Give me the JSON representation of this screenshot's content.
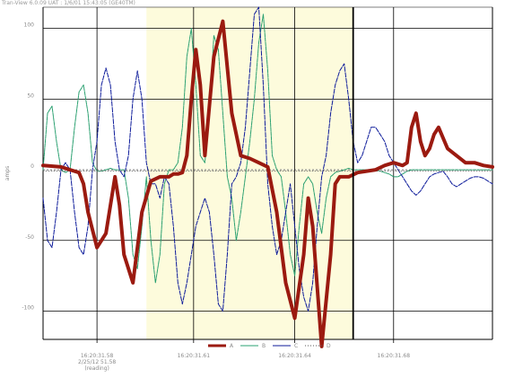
{
  "window": {
    "title": "Tran-View 6.0.09 UAT : 1/6/01 15:43:05 (GE40TM)"
  },
  "chart_data": {
    "type": "line",
    "ylabel": "amps",
    "ylim": [
      -120,
      115
    ],
    "y_ticks": [
      -100,
      -50,
      0,
      50,
      100
    ],
    "y_tick_labels": [
      "-100",
      "-50",
      "0",
      "50",
      "100"
    ],
    "x_domain": [
      0,
      100
    ],
    "x_ticks": [
      {
        "pos": 12,
        "label": "16:20:31.58",
        "sublabel": "2/25/12 51.58",
        "sublabel2": "(reading)"
      },
      {
        "pos": 33.5,
        "label": "16:20:31.61"
      },
      {
        "pos": 56,
        "label": "16:20:31.64"
      },
      {
        "pos": 78,
        "label": "16:20:31.68"
      }
    ],
    "x_grid": [
      12,
      33.5,
      56,
      78
    ],
    "cursor_lines": [
      23,
      69
    ],
    "highlight_range": [
      23,
      69
    ],
    "grid": true,
    "legend_position": "bottom",
    "series": [
      {
        "name": "A",
        "color": "#9b1a10",
        "x": [
          0,
          4,
          6,
          8,
          9,
          10,
          12,
          14,
          16,
          17,
          18,
          20,
          22,
          24,
          26,
          28,
          29,
          30,
          31,
          32,
          33,
          34,
          35,
          36,
          38,
          40,
          42,
          44,
          46,
          48,
          50,
          52,
          54,
          56,
          58,
          59,
          60,
          62,
          64,
          65,
          66,
          67,
          68,
          70,
          72,
          74,
          76,
          78,
          80,
          81,
          82,
          83,
          84,
          85,
          86,
          87,
          88,
          90,
          92,
          94,
          96,
          98,
          100
        ],
        "values": [
          3,
          2,
          0,
          -2,
          -10,
          -30,
          -55,
          -45,
          -5,
          -25,
          -60,
          -80,
          -30,
          -8,
          -5,
          -5,
          -3,
          -3,
          -2,
          10,
          50,
          85,
          60,
          10,
          80,
          105,
          40,
          10,
          8,
          5,
          2,
          -30,
          -80,
          -105,
          -60,
          -20,
          -40,
          -125,
          -60,
          -10,
          -5,
          -5,
          -5,
          -2,
          -1,
          0,
          3,
          5,
          3,
          5,
          30,
          40,
          20,
          10,
          15,
          25,
          30,
          15,
          10,
          5,
          5,
          3,
          2
        ]
      },
      {
        "name": "B",
        "color": "#2aa070",
        "x": [
          0,
          1,
          2,
          3,
          4,
          5,
          6,
          7,
          8,
          9,
          10,
          11,
          12,
          13,
          14,
          15,
          16,
          17,
          18,
          19,
          20,
          21,
          22,
          23,
          24,
          25,
          26,
          27,
          28,
          29,
          30,
          31,
          32,
          33,
          34,
          35,
          36,
          37,
          38,
          39,
          40,
          41,
          42,
          43,
          44,
          45,
          46,
          47,
          48,
          49,
          50,
          51,
          52,
          53,
          54,
          55,
          56,
          57,
          58,
          59,
          60,
          61,
          62,
          63,
          64,
          65,
          66,
          67,
          68,
          69,
          70,
          71,
          72,
          73,
          74,
          75,
          76,
          77,
          78,
          79,
          80,
          81,
          82,
          83,
          84,
          85,
          86,
          87,
          88,
          89,
          90,
          91,
          92,
          93,
          94,
          95,
          96,
          97,
          98,
          99,
          100
        ],
        "values": [
          0,
          40,
          45,
          20,
          0,
          -2,
          0,
          30,
          55,
          60,
          40,
          5,
          -1,
          -1,
          0,
          1,
          0,
          0,
          0,
          -20,
          -60,
          -70,
          -40,
          -5,
          -50,
          -80,
          -60,
          -10,
          0,
          0,
          5,
          30,
          80,
          100,
          60,
          10,
          5,
          40,
          95,
          85,
          40,
          -5,
          -20,
          -50,
          -30,
          -5,
          20,
          50,
          90,
          110,
          70,
          10,
          0,
          -5,
          -30,
          -60,
          -75,
          -40,
          -10,
          -5,
          -10,
          -30,
          -45,
          -20,
          -5,
          -2,
          -1,
          0,
          1,
          0,
          0,
          0,
          0,
          0,
          0,
          -1,
          -2,
          -3,
          -5,
          -5,
          -3,
          -1,
          0,
          0,
          0,
          0,
          0,
          0,
          0,
          0,
          0,
          0,
          0,
          0,
          0,
          0,
          0,
          0,
          0,
          0,
          0
        ]
      },
      {
        "name": "C",
        "color": "#0c1a9a",
        "x": [
          0,
          1,
          2,
          3,
          4,
          5,
          6,
          7,
          8,
          9,
          10,
          11,
          12,
          13,
          14,
          15,
          16,
          17,
          18,
          19,
          20,
          21,
          22,
          23,
          24,
          25,
          26,
          27,
          28,
          29,
          30,
          31,
          32,
          33,
          34,
          35,
          36,
          37,
          38,
          39,
          40,
          41,
          42,
          43,
          44,
          45,
          46,
          47,
          48,
          49,
          50,
          51,
          52,
          53,
          54,
          55,
          56,
          57,
          58,
          59,
          60,
          61,
          62,
          63,
          64,
          65,
          66,
          67,
          68,
          69,
          70,
          71,
          72,
          73,
          74,
          75,
          76,
          77,
          78,
          79,
          80,
          81,
          82,
          83,
          84,
          85,
          86,
          87,
          88,
          89,
          90,
          91,
          92,
          93,
          94,
          95,
          96,
          97,
          98,
          99,
          100
        ],
        "values": [
          -20,
          -50,
          -55,
          -30,
          0,
          5,
          0,
          -30,
          -55,
          -60,
          -40,
          0,
          20,
          60,
          72,
          60,
          20,
          0,
          -5,
          10,
          50,
          70,
          50,
          5,
          -10,
          -10,
          -20,
          -5,
          -10,
          -40,
          -80,
          -95,
          -80,
          -60,
          -40,
          -30,
          -20,
          -30,
          -60,
          -95,
          -100,
          -60,
          -10,
          -5,
          5,
          30,
          70,
          110,
          115,
          60,
          -10,
          -40,
          -60,
          -50,
          -30,
          -10,
          -40,
          -70,
          -90,
          -100,
          -80,
          -40,
          -5,
          10,
          40,
          60,
          70,
          75,
          50,
          20,
          5,
          10,
          20,
          30,
          30,
          25,
          20,
          10,
          5,
          0,
          -5,
          -10,
          -15,
          -18,
          -15,
          -10,
          -5,
          -3,
          -2,
          -1,
          -5,
          -10,
          -12,
          -10,
          -8,
          -6,
          -5,
          -5,
          -6,
          -8,
          -10
        ]
      },
      {
        "name": "D",
        "color": "#5a5a5a",
        "x": [
          0,
          100
        ],
        "values": [
          -1,
          -1
        ]
      }
    ]
  }
}
